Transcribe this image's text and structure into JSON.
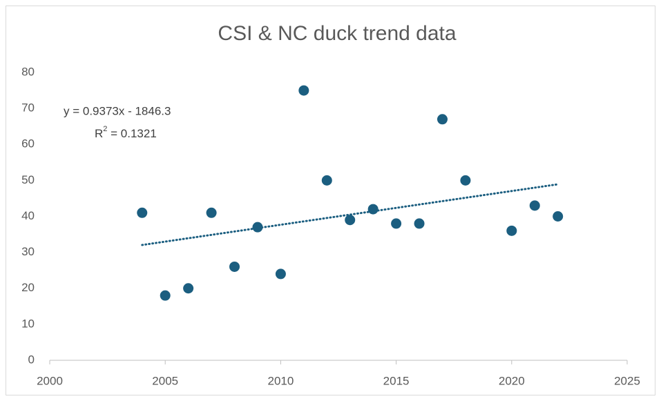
{
  "chart_data": {
    "type": "scatter",
    "title": "CSI & NC duck trend data",
    "x": [
      2004,
      2005,
      2006,
      2007,
      2008,
      2009,
      2010,
      2011,
      2012,
      2013,
      2014,
      2015,
      2016,
      2017,
      2018,
      2020,
      2021,
      2022
    ],
    "series": [
      {
        "name": "CSI & NC duck",
        "color": "#1b5e80",
        "values": [
          41,
          18,
          20,
          41,
          26,
          37,
          24,
          75,
          50,
          39,
          42,
          38,
          38,
          67,
          50,
          36,
          43,
          40
        ]
      }
    ],
    "xlim": [
      2000,
      2025
    ],
    "xticks": [
      2000,
      2005,
      2010,
      2015,
      2020,
      2025
    ],
    "ylim": [
      0,
      80
    ],
    "yticks": [
      0,
      10,
      20,
      30,
      40,
      50,
      60,
      70,
      80
    ],
    "grid": false,
    "trendline": {
      "slope": 0.9373,
      "intercept": -1846.3,
      "equation": "y = 0.9373x - 1846.3",
      "r2_base": "R",
      "r2_sup": "2",
      "r2_rest": " = 0.1321",
      "color": "#1b5e80"
    }
  }
}
